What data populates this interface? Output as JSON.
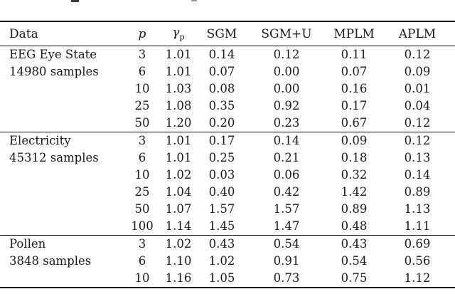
{
  "page": {
    "background": "#ffffff",
    "text_color": "#1a1a1a",
    "rule_color": "#111111"
  },
  "table": {
    "columns": [
      {
        "key": "data",
        "label": "Data"
      },
      {
        "key": "p",
        "label": "p"
      },
      {
        "key": "gamma",
        "label": "γ",
        "sub": "p"
      },
      {
        "key": "sgm",
        "label": "SGM"
      },
      {
        "key": "sgmu",
        "label": "SGM+U"
      },
      {
        "key": "mplm",
        "label": "MPLM"
      },
      {
        "key": "aplm",
        "label": "APLM"
      }
    ],
    "groups": [
      {
        "name": "EEG Eye State",
        "samples": "14980 samples",
        "rows": [
          {
            "p": "3",
            "gamma": "1.01",
            "sgm": "0.14",
            "sgmu": "0.12",
            "mplm": "0.11",
            "aplm": "0.12"
          },
          {
            "p": "6",
            "gamma": "1.01",
            "sgm": "0.07",
            "sgmu": "0.00",
            "mplm": "0.07",
            "aplm": "0.09"
          },
          {
            "p": "10",
            "gamma": "1.03",
            "sgm": "0.08",
            "sgmu": "0.00",
            "mplm": "0.16",
            "aplm": "0.01"
          },
          {
            "p": "25",
            "gamma": "1.08",
            "sgm": "0.35",
            "sgmu": "0.92",
            "mplm": "0.17",
            "aplm": "0.04"
          },
          {
            "p": "50",
            "gamma": "1.20",
            "sgm": "0.20",
            "sgmu": "0.23",
            "mplm": "0.67",
            "aplm": "0.12"
          }
        ]
      },
      {
        "name": "Electricity",
        "samples": "45312 samples",
        "rows": [
          {
            "p": "3",
            "gamma": "1.01",
            "sgm": "0.17",
            "sgmu": "0.14",
            "mplm": "0.09",
            "aplm": "0.12"
          },
          {
            "p": "6",
            "gamma": "1.01",
            "sgm": "0.25",
            "sgmu": "0.21",
            "mplm": "0.18",
            "aplm": "0.13"
          },
          {
            "p": "10",
            "gamma": "1.02",
            "sgm": "0.03",
            "sgmu": "0.06",
            "mplm": "0.32",
            "aplm": "0.14"
          },
          {
            "p": "25",
            "gamma": "1.04",
            "sgm": "0.40",
            "sgmu": "0.42",
            "mplm": "1.42",
            "aplm": "0.89"
          },
          {
            "p": "50",
            "gamma": "1.07",
            "sgm": "1.57",
            "sgmu": "1.57",
            "mplm": "0.89",
            "aplm": "1.13"
          },
          {
            "p": "100",
            "gamma": "1.14",
            "sgm": "1.45",
            "sgmu": "1.47",
            "mplm": "0.48",
            "aplm": "1.11"
          }
        ]
      },
      {
        "name": "Pollen",
        "samples": "3848 samples",
        "rows": [
          {
            "p": "3",
            "gamma": "1.02",
            "sgm": "0.43",
            "sgmu": "0.54",
            "mplm": "0.43",
            "aplm": "0.69"
          },
          {
            "p": "6",
            "gamma": "1.10",
            "sgm": "1.02",
            "sgmu": "0.91",
            "mplm": "0.54",
            "aplm": "0.56"
          },
          {
            "p": "10",
            "gamma": "1.16",
            "sgm": "1.05",
            "sgmu": "0.73",
            "mplm": "0.75",
            "aplm": "1.12"
          }
        ]
      }
    ]
  }
}
